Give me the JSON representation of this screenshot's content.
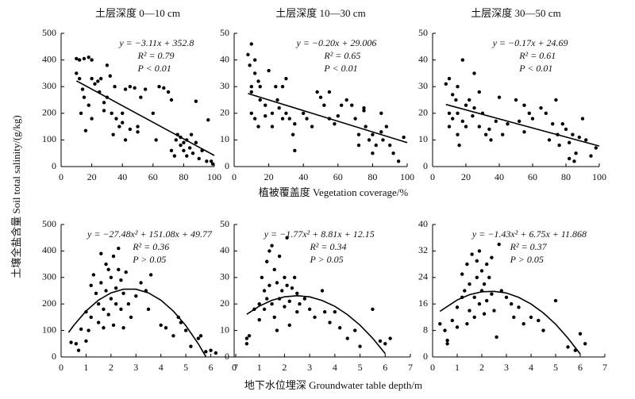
{
  "ylabel": "土壤全盐含量 Soil total salinity/(g/kg)",
  "xlabels": [
    "植被覆盖度 Vegetation coverage/%",
    "地下水位埋深 Groundwater table depth/m"
  ],
  "chart_data": [
    {
      "type": "scatter",
      "title": "土层深度 0—10 cm",
      "color": "#000000",
      "annotations": [
        "y = −3.11x + 352.8",
        "R² = 0.79",
        "P < 0.01"
      ],
      "xlim": [
        0,
        100
      ],
      "xticks": [
        0,
        20,
        40,
        60,
        80,
        100
      ],
      "ylim": [
        0,
        500
      ],
      "yticks": [
        0,
        100,
        200,
        300,
        400,
        500
      ],
      "x": [
        10,
        12,
        15,
        18,
        20,
        10,
        12,
        14,
        15,
        13,
        16,
        18,
        20,
        22,
        24,
        26,
        25,
        28,
        28,
        30,
        30,
        32,
        33,
        35,
        36,
        38,
        40,
        40,
        42,
        42,
        45,
        45,
        48,
        50,
        50,
        52,
        55,
        60,
        62,
        64,
        67,
        70,
        72,
        72,
        74,
        75,
        76,
        78,
        78,
        80,
        80,
        82,
        82,
        84,
        85,
        86,
        88,
        88,
        90,
        92,
        95,
        96,
        98,
        99,
        20,
        34
      ],
      "values": [
        405,
        400,
        405,
        410,
        400,
        350,
        330,
        290,
        260,
        200,
        135,
        230,
        330,
        310,
        320,
        330,
        280,
        240,
        210,
        260,
        380,
        340,
        200,
        300,
        180,
        150,
        200,
        165,
        290,
        100,
        140,
        300,
        295,
        150,
        130,
        260,
        290,
        200,
        100,
        300,
        295,
        280,
        250,
        60,
        40,
        100,
        120,
        110,
        80,
        90,
        60,
        100,
        40,
        70,
        120,
        50,
        245,
        90,
        30,
        60,
        20,
        175,
        20,
        10,
        180,
        120
      ],
      "fit": {
        "x": [
          10,
          100
        ],
        "values": [
          321.7,
          41.8
        ]
      }
    },
    {
      "type": "scatter",
      "title": "土层深度 10—30 cm",
      "color": "#000000",
      "annotations": [
        "y = −0.20x + 29.006",
        "R² = 0.65",
        "P < 0.01"
      ],
      "xlim": [
        0,
        100
      ],
      "xticks": [
        0,
        20,
        40,
        60,
        80,
        100
      ],
      "ylim": [
        0,
        50
      ],
      "yticks": [
        0,
        10,
        20,
        30,
        40,
        50
      ],
      "x": [
        8,
        10,
        9,
        12,
        10,
        10,
        12,
        14,
        15,
        10,
        12,
        14,
        15,
        18,
        18,
        20,
        22,
        22,
        24,
        25,
        26,
        28,
        28,
        30,
        30,
        32,
        34,
        35,
        35,
        40,
        42,
        45,
        48,
        50,
        52,
        55,
        55,
        58,
        60,
        62,
        65,
        68,
        70,
        72,
        72,
        75,
        76,
        78,
        80,
        80,
        82,
        85,
        86,
        88,
        90,
        92,
        95,
        98,
        75,
        85
      ],
      "values": [
        42,
        46,
        38,
        40,
        30,
        28,
        35,
        32,
        30,
        20,
        18,
        15,
        25,
        23,
        19,
        36,
        20,
        15,
        30,
        25,
        22,
        30,
        18,
        20,
        33,
        18,
        12,
        6,
        16,
        20,
        18,
        15,
        28,
        26,
        23,
        28,
        18,
        16,
        19,
        23,
        25,
        23,
        18,
        12,
        8,
        21,
        15,
        10,
        12,
        5,
        8,
        13,
        10,
        15,
        8,
        5,
        2,
        11,
        22,
        20
      ],
      "fit": {
        "x": [
          8,
          100
        ],
        "values": [
          27.4,
          9.0
        ]
      }
    },
    {
      "type": "scatter",
      "title": "土层深度 30—50 cm",
      "color": "#000000",
      "annotations": [
        "y = −0.17x + 24.69",
        "R² = 0.61",
        "P < 0.01"
      ],
      "xlim": [
        0,
        100
      ],
      "xticks": [
        0,
        20,
        40,
        60,
        80,
        100
      ],
      "ylim": [
        0,
        50
      ],
      "yticks": [
        0,
        10,
        20,
        30,
        40,
        50
      ],
      "x": [
        8,
        10,
        10,
        10,
        12,
        12,
        14,
        15,
        15,
        16,
        18,
        18,
        20,
        22,
        24,
        25,
        25,
        28,
        28,
        30,
        32,
        34,
        35,
        38,
        40,
        42,
        45,
        50,
        52,
        55,
        55,
        58,
        60,
        65,
        68,
        70,
        72,
        74,
        75,
        76,
        78,
        80,
        82,
        82,
        84,
        85,
        86,
        88,
        90,
        92,
        95,
        98,
        15,
        20
      ],
      "values": [
        31,
        33,
        20,
        15,
        18,
        27,
        25,
        30,
        12,
        8,
        40,
        17,
        23,
        25,
        19,
        22,
        35,
        28,
        15,
        20,
        12,
        14,
        10,
        17,
        26,
        12,
        16,
        25,
        17,
        23,
        13,
        20,
        18,
        22,
        20,
        10,
        16,
        25,
        12,
        8,
        16,
        14,
        9,
        3,
        12,
        2,
        5,
        11,
        18,
        10,
        4,
        7,
        20,
        15
      ],
      "fit": {
        "x": [
          8,
          100
        ],
        "values": [
          23.3,
          7.7
        ]
      }
    },
    {
      "type": "scatter",
      "title": null,
      "color": "#000000",
      "annotations": [
        "y = −27.48x² + 151.08x + 49.77",
        "R² = 0.36",
        "P > 0.05"
      ],
      "xlim": [
        0,
        7
      ],
      "xticks": [
        0,
        1,
        2,
        3,
        4,
        5,
        6,
        7
      ],
      "ylim": [
        0,
        500
      ],
      "yticks": [
        0,
        100,
        200,
        300,
        400,
        500
      ],
      "x": [
        0.4,
        0.6,
        0.7,
        0.8,
        1.0,
        1.0,
        1.2,
        1.3,
        1.4,
        1.5,
        1.5,
        1.6,
        1.6,
        1.7,
        1.7,
        1.8,
        1.8,
        1.9,
        1.9,
        2.0,
        2.0,
        2.1,
        2.1,
        2.2,
        2.2,
        2.3,
        2.3,
        2.4,
        2.4,
        2.5,
        2.5,
        2.6,
        2.7,
        2.8,
        3.0,
        3.2,
        3.4,
        3.5,
        3.6,
        4.0,
        4.2,
        4.5,
        4.7,
        4.8,
        5.0,
        5.2,
        5.5,
        5.6,
        5.8,
        6.0,
        6.2,
        1.2,
        1.1
      ],
      "values": [
        55,
        50,
        25,
        105,
        60,
        170,
        150,
        310,
        240,
        130,
        200,
        390,
        280,
        180,
        110,
        350,
        250,
        330,
        160,
        300,
        220,
        380,
        120,
        260,
        200,
        410,
        330,
        290,
        180,
        240,
        110,
        320,
        200,
        150,
        230,
        280,
        250,
        180,
        310,
        120,
        110,
        80,
        150,
        130,
        100,
        40,
        70,
        80,
        20,
        25,
        15,
        270,
        100
      ],
      "fit": {
        "x": [
          0.3,
          0.5,
          1,
          1.5,
          2,
          2.5,
          3,
          3.5,
          4,
          4.5,
          5,
          5.5,
          5.8
        ],
        "values": [
          92.6,
          118.4,
          173.4,
          214.6,
          242.0,
          255.7,
          255.7,
          241.9,
          214.4,
          173.2,
          118.2,
          49.4,
          1.6
        ]
      }
    },
    {
      "type": "scatter",
      "title": null,
      "color": "#000000",
      "annotations": [
        "y = −1.77x² + 8.81x + 12.15",
        "R² = 0.34",
        "P > 0.05"
      ],
      "xlim": [
        0,
        7
      ],
      "xticks": [
        0,
        1,
        2,
        3,
        4,
        5,
        6,
        7
      ],
      "ylim": [
        0,
        50
      ],
      "yticks": [
        0,
        10,
        20,
        30,
        40,
        50
      ],
      "x": [
        0.5,
        0.5,
        0.6,
        0.8,
        1.0,
        1.0,
        1.1,
        1.2,
        1.2,
        1.3,
        1.3,
        1.4,
        1.4,
        1.5,
        1.5,
        1.6,
        1.6,
        1.7,
        1.8,
        1.8,
        1.9,
        2.0,
        2.0,
        2.1,
        2.1,
        2.2,
        2.3,
        2.4,
        2.5,
        2.5,
        2.6,
        2.8,
        3.0,
        3.2,
        3.5,
        3.6,
        3.8,
        4.0,
        4.2,
        4.5,
        4.8,
        5.0,
        5.5,
        5.8,
        6.0,
        6.2,
        1.7,
        2.2
      ],
      "values": [
        5,
        7,
        8,
        18,
        20,
        14,
        30,
        25,
        18,
        36,
        22,
        40,
        27,
        42,
        20,
        33,
        15,
        28,
        38,
        22,
        25,
        19,
        30,
        45,
        27,
        21,
        26,
        30,
        17,
        24,
        20,
        22,
        18,
        15,
        25,
        17,
        13,
        17,
        11,
        7,
        10,
        4,
        18,
        6,
        5,
        7,
        10,
        12
      ],
      "fit": {
        "x": [
          0.5,
          1,
          1.5,
          2,
          2.5,
          3,
          3.5,
          4,
          4.5,
          5,
          5.5,
          6
        ],
        "values": [
          16.1,
          19.2,
          21.4,
          22.7,
          23.1,
          22.7,
          21.3,
          19.1,
          16.0,
          12.0,
          7.1,
          1.3
        ]
      }
    },
    {
      "type": "scatter",
      "title": null,
      "color": "#000000",
      "annotations": [
        "y = −1.43x² + 6.75x + 11.868",
        "R² = 0.37",
        "P > 0.05"
      ],
      "xlim": [
        0,
        7
      ],
      "xticks": [
        0,
        1,
        2,
        3,
        4,
        5,
        6,
        7
      ],
      "ylim": [
        0,
        40
      ],
      "yticks": [
        0,
        8,
        16,
        24,
        32,
        40
      ],
      "x": [
        0.3,
        0.5,
        0.6,
        0.6,
        0.8,
        1.0,
        1.0,
        1.2,
        1.2,
        1.3,
        1.4,
        1.5,
        1.5,
        1.6,
        1.7,
        1.7,
        1.8,
        1.8,
        1.9,
        1.9,
        2.0,
        2.0,
        2.1,
        2.1,
        2.2,
        2.2,
        2.3,
        2.4,
        2.5,
        2.6,
        2.7,
        2.8,
        3.0,
        3.2,
        3.3,
        3.5,
        3.7,
        4.0,
        4.3,
        4.5,
        5.0,
        5.5,
        5.8,
        6.0,
        6.2,
        1.4,
        2.4
      ],
      "values": [
        10,
        8,
        4,
        5,
        11,
        9,
        15,
        18,
        25,
        20,
        28,
        22,
        14,
        31,
        18,
        12,
        29,
        24,
        32,
        16,
        26,
        20,
        22,
        13,
        28,
        17,
        24,
        19,
        14,
        6,
        34,
        20,
        18,
        16,
        12,
        15,
        10,
        12,
        11,
        8,
        17,
        3,
        2,
        7,
        4,
        10,
        30
      ],
      "fit": {
        "x": [
          0.3,
          1,
          1.5,
          2,
          2.5,
          3,
          3.5,
          4,
          4.5,
          5,
          5.5,
          6
        ],
        "values": [
          13.8,
          17.2,
          18.8,
          19.7,
          19.8,
          19.3,
          18.0,
          16.0,
          13.3,
          9.9,
          5.7,
          0.9
        ]
      }
    }
  ]
}
